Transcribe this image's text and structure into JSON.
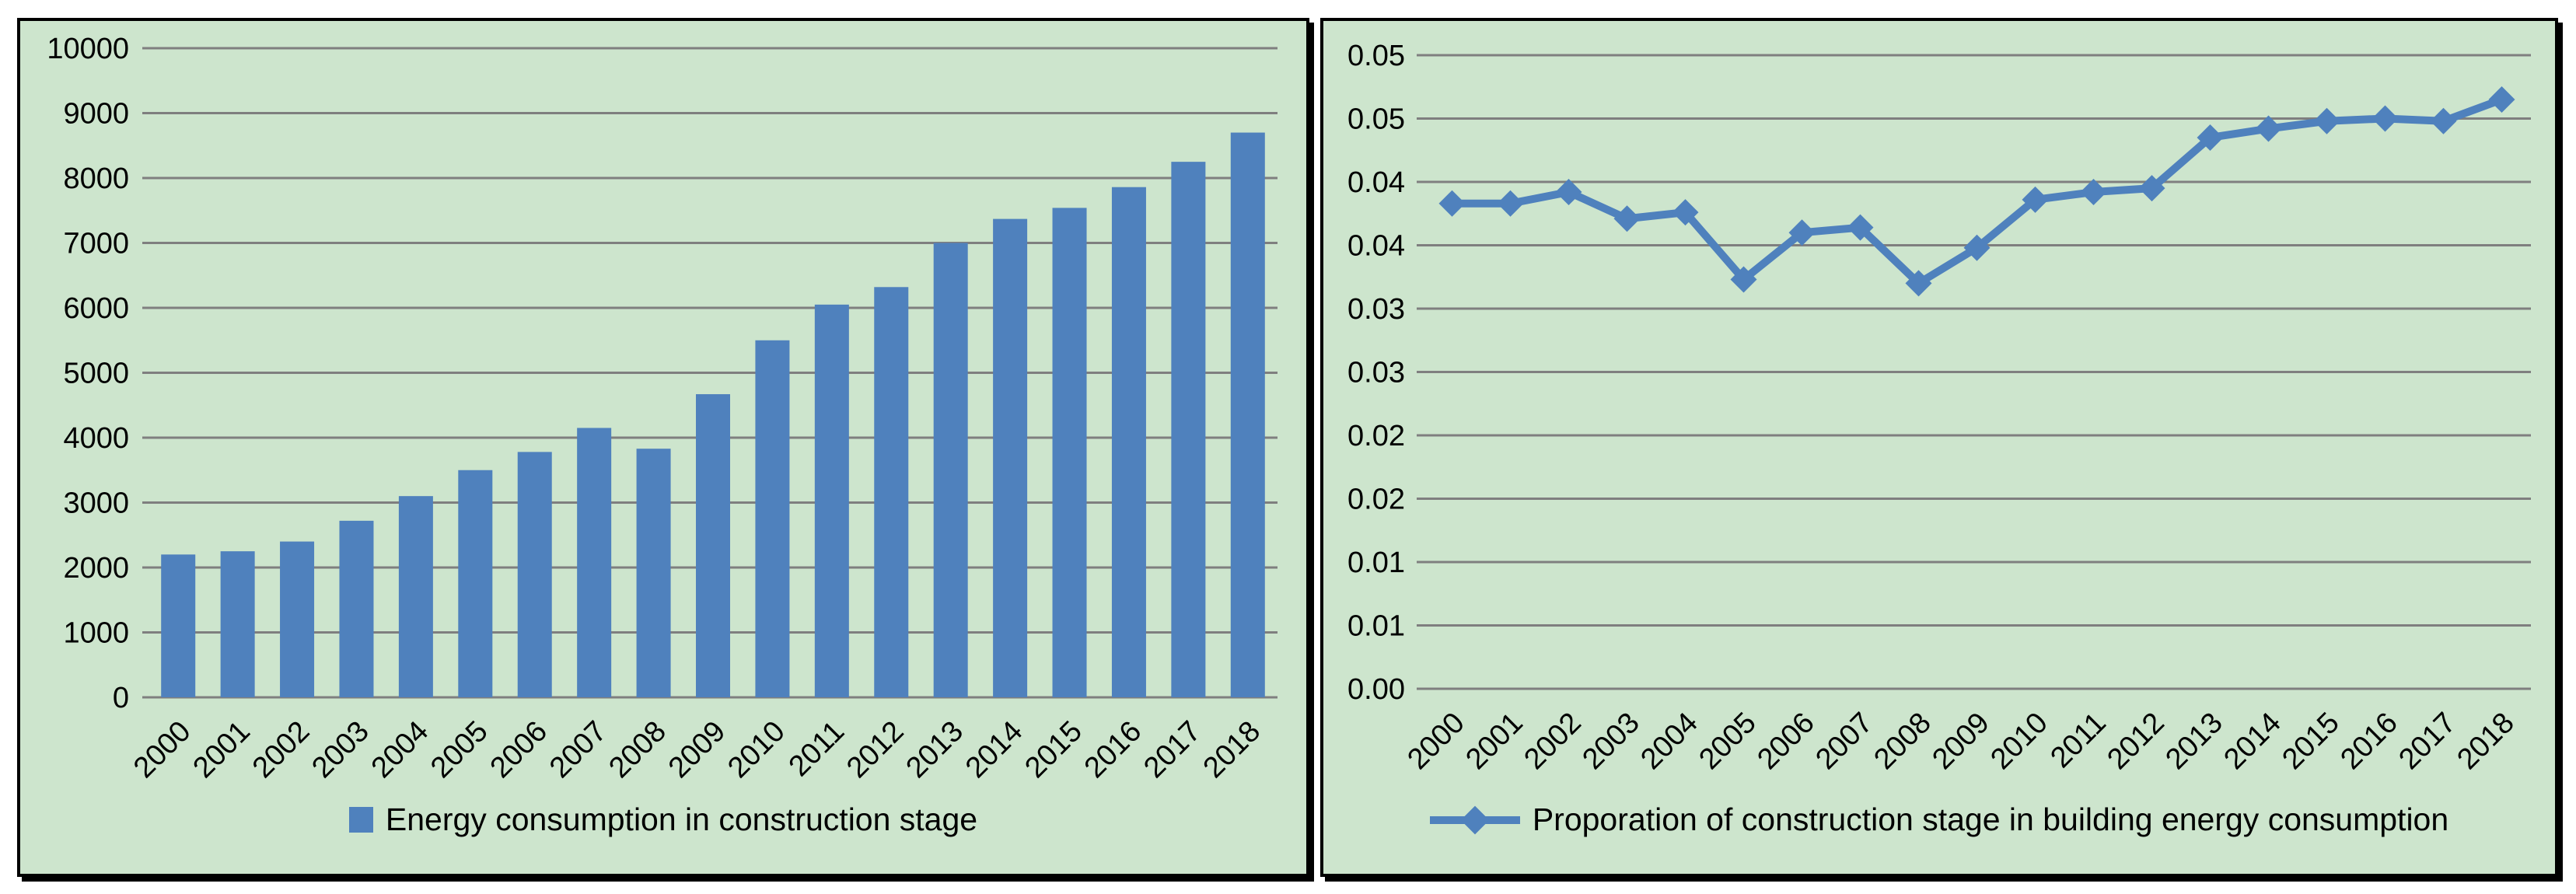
{
  "colors": {
    "page_bg": "#ffffff",
    "panel_bg": "#cde5cd",
    "gridline": "#7f7f7f",
    "series_blue": "#4f81bd",
    "text": "#000000"
  },
  "chart_data": [
    {
      "type": "bar",
      "title": "",
      "categories": [
        "2000",
        "2001",
        "2002",
        "2003",
        "2004",
        "2005",
        "2006",
        "2007",
        "2008",
        "2009",
        "2010",
        "2011",
        "2012",
        "2013",
        "2014",
        "2015",
        "2016",
        "2017",
        "2018"
      ],
      "series": [
        {
          "name": "Energy consumption in construction stage",
          "values": [
            2200,
            2250,
            2400,
            2720,
            3100,
            3500,
            3780,
            4150,
            3830,
            4670,
            5500,
            6050,
            6320,
            7000,
            7370,
            7540,
            7860,
            8250,
            8700
          ]
        }
      ],
      "ylim": [
        0,
        10000
      ],
      "ytick_labels_bottom_to_top": [
        "0",
        "1000",
        "2000",
        "3000",
        "4000",
        "5000",
        "6000",
        "7000",
        "8000",
        "9000",
        "10000"
      ],
      "grid": true,
      "legend_position": "bottom",
      "legend": {
        "marker": "square",
        "label": "Energy consumption in construction stage"
      }
    },
    {
      "type": "line",
      "title": "",
      "categories": [
        "2000",
        "2001",
        "2002",
        "2003",
        "2004",
        "2005",
        "2006",
        "2007",
        "2008",
        "2009",
        "2010",
        "2011",
        "2012",
        "2013",
        "2014",
        "2015",
        "2016",
        "2017",
        "2018"
      ],
      "series": [
        {
          "name": "Proporation of construction stage in building energy consumption",
          "values": [
            0.0383,
            0.0383,
            0.0392,
            0.0371,
            0.0376,
            0.0323,
            0.036,
            0.0364,
            0.032,
            0.0348,
            0.0386,
            0.0392,
            0.0395,
            0.0435,
            0.0442,
            0.0448,
            0.045,
            0.0448,
            0.0465
          ]
        }
      ],
      "ylim": [
        0,
        0.05
      ],
      "ytick_labels_bottom_to_top": [
        "0.00",
        "0.01",
        "0.01",
        "0.02",
        "0.02",
        "0.03",
        "0.03",
        "0.04",
        "0.04",
        "0.05",
        "0.05"
      ],
      "grid": true,
      "legend_position": "bottom",
      "legend": {
        "marker": "line-diamond",
        "label": "Proporation of construction stage in building energy consumption"
      }
    }
  ]
}
